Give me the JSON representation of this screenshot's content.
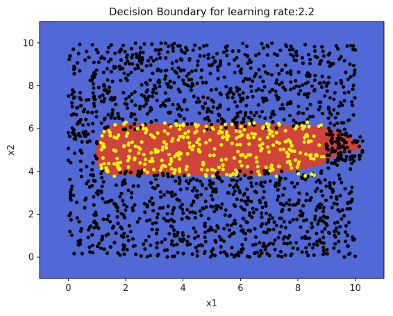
{
  "chart_data": {
    "type": "scatter",
    "title": "Decision Boundary for learning rate:2.2",
    "xlabel": "x1",
    "ylabel": "x2",
    "xlim": [
      -1,
      11
    ],
    "ylim": [
      -1,
      11
    ],
    "xticks": [
      0,
      2,
      4,
      6,
      8,
      10
    ],
    "yticks": [
      0,
      2,
      4,
      6,
      8,
      10
    ],
    "grid": false,
    "legend": "none",
    "colors": {
      "background_region": "#5069d6",
      "decision_region": "#d1433a",
      "class_0_points": "#000000",
      "class_1_points": "#f2f20e"
    },
    "decision_region_polygon": [
      [
        1.1,
        5.6
      ],
      [
        1.2,
        5.9
      ],
      [
        1.4,
        6.15
      ],
      [
        1.8,
        6.25
      ],
      [
        5.5,
        6.25
      ],
      [
        8.5,
        6.15
      ],
      [
        9.0,
        6.05
      ],
      [
        9.7,
        5.75
      ],
      [
        10.1,
        5.3
      ],
      [
        10.3,
        5.1
      ],
      [
        10.0,
        4.95
      ],
      [
        9.5,
        4.95
      ],
      [
        9.2,
        4.6
      ],
      [
        8.8,
        4.3
      ],
      [
        8.5,
        4.2
      ],
      [
        8.0,
        4.05
      ],
      [
        7.5,
        3.95
      ],
      [
        7.0,
        3.85
      ],
      [
        6.0,
        3.8
      ],
      [
        4.5,
        3.8
      ],
      [
        2.0,
        3.8
      ],
      [
        1.4,
        3.85
      ],
      [
        1.0,
        4.3
      ],
      [
        0.95,
        5.0
      ]
    ],
    "series": [
      {
        "class": 0,
        "color": "#000000",
        "region": "uniform over [0,10]x[0,10] excluding the rectangle x1 1..9, x2 4..6",
        "count": 1500
      },
      {
        "class": 1,
        "color": "#f2f20e",
        "region": "inside the rectangle x1 1..9, x2 4..6",
        "count": 320
      }
    ]
  }
}
